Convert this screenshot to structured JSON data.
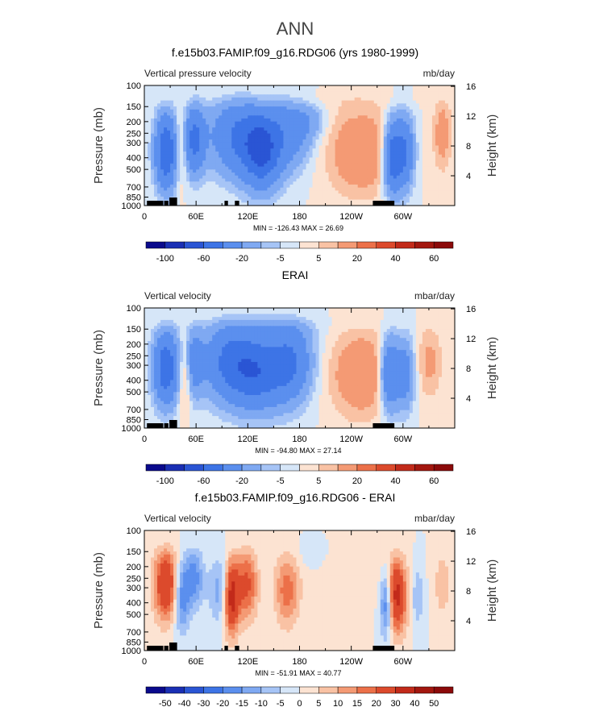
{
  "page_title": "ANN",
  "colors": {
    "negative_strong": "#0a0a8c",
    "negative_light": "#d6e6f8",
    "positive_light": "#fce3d2",
    "positive_strong": "#8b0a0a",
    "topography": "#000000"
  },
  "chart_data": [
    {
      "type": "heatmap",
      "title": "f.e15b03.FAMIP.f09_g16.RDG06 (yrs 1980-1999)",
      "subtitle_left": "Vertical pressure velocity",
      "subtitle_right": "mb/day",
      "ylabel": "Pressure (mb)",
      "ylabel_right": "Height (km)",
      "x_ticks": [
        "0",
        "60E",
        "120E",
        "180",
        "120W",
        "60W"
      ],
      "y_ticks": [
        "100",
        "150",
        "200",
        "250",
        "300",
        "400",
        "500",
        "700",
        "850",
        "1000"
      ],
      "y_right_ticks": [
        "16",
        "12",
        "8",
        "4"
      ],
      "stats": "MIN = -126.43   MAX =  26.69",
      "colorbar_labels": [
        "-100",
        "-60",
        "-20",
        "-5",
        "5",
        "20",
        "40",
        "60"
      ],
      "colorbar_colors": [
        "#0a0a8c",
        "#1a2fb4",
        "#2a55d4",
        "#3d74e6",
        "#5b8fee",
        "#7fa9f2",
        "#a6c4f6",
        "#d6e6f8",
        "#fce3d2",
        "#f9c2a4",
        "#f49a74",
        "#ec7049",
        "#dc4a2c",
        "#c22a1a",
        "#a3170f",
        "#8b0a0a"
      ],
      "ylim": [
        1000,
        100
      ],
      "xlim": [
        0,
        360
      ]
    },
    {
      "type": "heatmap",
      "title": "ERAI",
      "subtitle_left": "Vertical velocity",
      "subtitle_right": "mbar/day",
      "ylabel": "Pressure (mb)",
      "ylabel_right": "Height (km)",
      "x_ticks": [
        "0",
        "60E",
        "120E",
        "180",
        "120W",
        "60W"
      ],
      "y_ticks": [
        "100",
        "150",
        "200",
        "250",
        "300",
        "400",
        "500",
        "700",
        "850",
        "1000"
      ],
      "y_right_ticks": [
        "16",
        "12",
        "8",
        "4"
      ],
      "stats": "MIN = -94.80   MAX =  27.14",
      "colorbar_labels": [
        "-100",
        "-60",
        "-20",
        "-5",
        "5",
        "20",
        "40",
        "60"
      ],
      "colorbar_colors": [
        "#0a0a8c",
        "#1a2fb4",
        "#2a55d4",
        "#3d74e6",
        "#5b8fee",
        "#7fa9f2",
        "#a6c4f6",
        "#d6e6f8",
        "#fce3d2",
        "#f9c2a4",
        "#f49a74",
        "#ec7049",
        "#dc4a2c",
        "#c22a1a",
        "#a3170f",
        "#8b0a0a"
      ],
      "ylim": [
        1000,
        100
      ],
      "xlim": [
        0,
        360
      ]
    },
    {
      "type": "heatmap",
      "title": "f.e15b03.FAMIP.f09_g16.RDG06 - ERAI",
      "subtitle_left": "Vertical velocity",
      "subtitle_right": "mbar/day",
      "ylabel": "Pressure (mb)",
      "ylabel_right": "Height (km)",
      "x_ticks": [
        "0",
        "60E",
        "120E",
        "180",
        "120W",
        "60W"
      ],
      "y_ticks": [
        "100",
        "150",
        "200",
        "250",
        "300",
        "400",
        "500",
        "700",
        "850",
        "1000"
      ],
      "y_right_ticks": [
        "16",
        "12",
        "8",
        "4"
      ],
      "stats": "MIN = -51.91   MAX =  40.77",
      "colorbar_labels": [
        "-50",
        "-40",
        "-30",
        "-20",
        "-15",
        "-10",
        "-5",
        "0",
        "5",
        "10",
        "15",
        "20",
        "30",
        "40",
        "50"
      ],
      "colorbar_colors": [
        "#0a0a8c",
        "#1a2fb4",
        "#2a55d4",
        "#3d74e6",
        "#5b8fee",
        "#7fa9f2",
        "#a6c4f6",
        "#d6e6f8",
        "#fce3d2",
        "#f9c2a4",
        "#f49a74",
        "#ec7049",
        "#dc4a2c",
        "#c22a1a",
        "#a3170f",
        "#8b0a0a"
      ],
      "ylim": [
        1000,
        100
      ],
      "xlim": [
        0,
        360
      ]
    }
  ]
}
